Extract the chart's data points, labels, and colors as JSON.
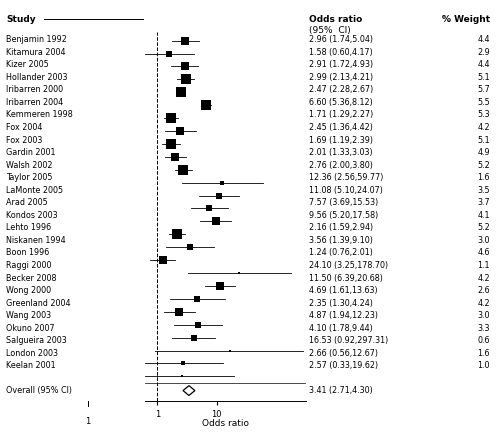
{
  "studies": [
    {
      "name": "Benjamin 1992",
      "or": 2.96,
      "ci_lo": 1.74,
      "ci_hi": 5.04,
      "weight": 4.4,
      "ci_str": "2.96 (1.74,5.04)",
      "w_str": "4.4"
    },
    {
      "name": "Kitamura 2004",
      "or": 1.58,
      "ci_lo": 0.6,
      "ci_hi": 4.17,
      "weight": 2.9,
      "ci_str": "1.58 (0.60,4.17)",
      "w_str": "2.9"
    },
    {
      "name": "Kizer 2005",
      "or": 2.91,
      "ci_lo": 1.72,
      "ci_hi": 4.93,
      "weight": 4.4,
      "ci_str": "2.91 (1.72,4.93)",
      "w_str": "4.4"
    },
    {
      "name": "Hollander 2003",
      "or": 2.99,
      "ci_lo": 2.13,
      "ci_hi": 4.21,
      "weight": 5.1,
      "ci_str": "2.99 (2.13,4.21)",
      "w_str": "5.1"
    },
    {
      "name": "Iribarren 2000",
      "or": 2.47,
      "ci_lo": 2.28,
      "ci_hi": 2.67,
      "weight": 5.7,
      "ci_str": "2.47 (2.28,2.67)",
      "w_str": "5.7"
    },
    {
      "name": "Iribarren 2004",
      "or": 6.6,
      "ci_lo": 5.36,
      "ci_hi": 8.12,
      "weight": 5.5,
      "ci_str": "6.60 (5.36,8.12)",
      "w_str": "5.5"
    },
    {
      "name": "Kemmeren 1998",
      "or": 1.71,
      "ci_lo": 1.29,
      "ci_hi": 2.27,
      "weight": 5.3,
      "ci_str": "1.71 (1.29,2.27)",
      "w_str": "5.3"
    },
    {
      "name": "Fox 2004",
      "or": 2.45,
      "ci_lo": 1.36,
      "ci_hi": 4.42,
      "weight": 4.2,
      "ci_str": "2.45 (1.36,4.42)",
      "w_str": "4.2"
    },
    {
      "name": "Fox 2003",
      "or": 1.69,
      "ci_lo": 1.19,
      "ci_hi": 2.39,
      "weight": 5.1,
      "ci_str": "1.69 (1.19,2.39)",
      "w_str": "5.1"
    },
    {
      "name": "Gardin 2001",
      "or": 2.01,
      "ci_lo": 1.33,
      "ci_hi": 3.03,
      "weight": 4.9,
      "ci_str": "2.01 (1.33,3.03)",
      "w_str": "4.9"
    },
    {
      "name": "Walsh 2002",
      "or": 2.76,
      "ci_lo": 2.0,
      "ci_hi": 3.8,
      "weight": 5.2,
      "ci_str": "2.76 (2.00,3.80)",
      "w_str": "5.2"
    },
    {
      "name": "Taylor 2005",
      "or": 12.36,
      "ci_lo": 2.56,
      "ci_hi": 59.77,
      "weight": 1.6,
      "ci_str": "12.36 (2.56,59.77)",
      "w_str": "1.6"
    },
    {
      "name": "LaMonte 2005",
      "or": 11.08,
      "ci_lo": 5.1,
      "ci_hi": 24.07,
      "weight": 3.5,
      "ci_str": "11.08 (5.10,24.07)",
      "w_str": "3.5"
    },
    {
      "name": "Arad 2005",
      "or": 7.57,
      "ci_lo": 3.69,
      "ci_hi": 15.53,
      "weight": 3.7,
      "ci_str": "7.57 (3.69,15.53)",
      "w_str": "3.7"
    },
    {
      "name": "Kondos 2003",
      "or": 9.56,
      "ci_lo": 5.2,
      "ci_hi": 17.58,
      "weight": 4.1,
      "ci_str": "9.56 (5.20,17.58)",
      "w_str": "4.1"
    },
    {
      "name": "Lehto 1996",
      "or": 2.16,
      "ci_lo": 1.59,
      "ci_hi": 2.94,
      "weight": 5.2,
      "ci_str": "2.16 (1.59,2.94)",
      "w_str": "5.2"
    },
    {
      "name": "Niskanen 1994",
      "or": 3.56,
      "ci_lo": 1.39,
      "ci_hi": 9.1,
      "weight": 3.0,
      "ci_str": "3.56 (1.39,9.10)",
      "w_str": "3.0"
    },
    {
      "name": "Boon 1996",
      "or": 1.24,
      "ci_lo": 0.76,
      "ci_hi": 2.01,
      "weight": 4.6,
      "ci_str": "1.24 (0.76,2.01)",
      "w_str": "4.6"
    },
    {
      "name": "Raggi 2000",
      "or": 24.1,
      "ci_lo": 3.25,
      "ci_hi": 178.7,
      "weight": 1.1,
      "ci_str": "24.10 (3.25,178.70)",
      "w_str": "1.1"
    },
    {
      "name": "Becker 2008",
      "or": 11.5,
      "ci_lo": 6.39,
      "ci_hi": 20.68,
      "weight": 4.2,
      "ci_str": "11.50 (6.39,20.68)",
      "w_str": "4.2"
    },
    {
      "name": "Wong 2000",
      "or": 4.69,
      "ci_lo": 1.61,
      "ci_hi": 13.63,
      "weight": 2.6,
      "ci_str": "4.69 (1.61,13.63)",
      "w_str": "2.6"
    },
    {
      "name": "Greenland 2004",
      "or": 2.35,
      "ci_lo": 1.3,
      "ci_hi": 4.24,
      "weight": 4.2,
      "ci_str": "2.35 (1.30,4.24)",
      "w_str": "4.2"
    },
    {
      "name": "Wang 2003",
      "or": 4.87,
      "ci_lo": 1.94,
      "ci_hi": 12.23,
      "weight": 3.0,
      "ci_str": "4.87 (1.94,12.23)",
      "w_str": "3.0"
    },
    {
      "name": "Okuno 2007",
      "or": 4.1,
      "ci_lo": 1.78,
      "ci_hi": 9.44,
      "weight": 3.3,
      "ci_str": "4.10 (1.78,9.44)",
      "w_str": "3.3"
    },
    {
      "name": "Salgueira 2003",
      "or": 16.53,
      "ci_lo": 0.92,
      "ci_hi": 297.31,
      "weight": 0.6,
      "ci_str": "16.53 (0.92,297.31)",
      "w_str": "0.6"
    },
    {
      "name": "London 2003",
      "or": 2.66,
      "ci_lo": 0.56,
      "ci_hi": 12.67,
      "weight": 1.6,
      "ci_str": "2.66 (0.56,12.67)",
      "w_str": "1.6"
    },
    {
      "name": "Keelan 2001",
      "or": 2.57,
      "ci_lo": 0.33,
      "ci_hi": 19.62,
      "weight": 1.0,
      "ci_str": "2.57 (0.33,19.62)",
      "w_str": "1.0"
    }
  ],
  "overall": {
    "or": 3.41,
    "ci_lo": 2.71,
    "ci_hi": 4.3,
    "ci_str": "3.41 (2.71,4.30)"
  },
  "title_study": "Study",
  "title_or": "Odds ratio",
  "title_ci": "(95%  CI)",
  "title_weight": "% Weight",
  "xlabel": "Odds ratio",
  "xlim_lo": 0.62,
  "xlim_hi": 320,
  "bg_color": "#ffffff",
  "fs_header": 6.5,
  "fs_body": 5.8,
  "fs_xlabel": 6.5,
  "fs_tick": 6.0
}
